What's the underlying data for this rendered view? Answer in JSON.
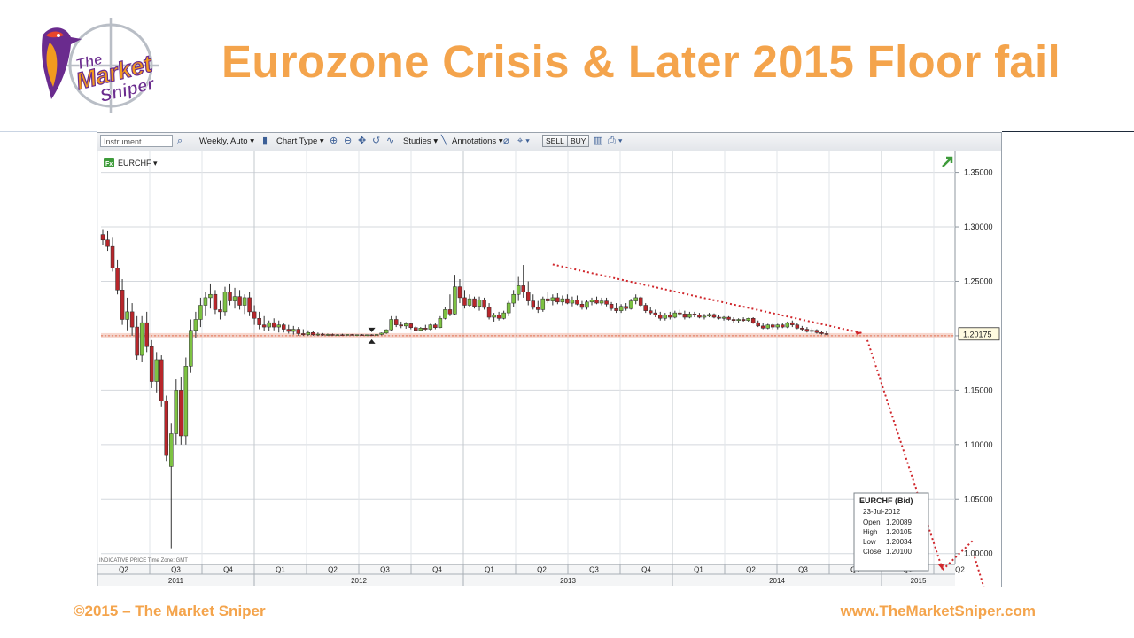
{
  "slide": {
    "title": "Eurozone Crisis & Later 2015 Floor fail",
    "footer_left": "©2015 – The Market Sniper",
    "footer_right": "www.TheMarketSniper.com",
    "logo_text_line1": "The",
    "logo_text_line2": "Market",
    "logo_text_line3": "Sniper",
    "accent_color": "#f4a44c"
  },
  "toolbar": {
    "instrument_placeholder": "Instrument",
    "interval": "Weekly, Auto",
    "chart_type": "Chart Type",
    "studies": "Studies",
    "annotations": "Annotations",
    "sell": "SELL",
    "buy": "BUY"
  },
  "chart_data": {
    "type": "candlestick",
    "symbol": "EURCHF",
    "symbol_badge": "Fx",
    "frequency": "weekly",
    "ylim": [
      0.99,
      1.37
    ],
    "y_ticks": [
      "1.35000",
      "1.30000",
      "1.25000",
      "1.20000",
      "1.15000",
      "1.10000",
      "1.05000",
      "1.00000"
    ],
    "y_tick_values": [
      1.35,
      1.3,
      1.25,
      1.2,
      1.15,
      1.1,
      1.05,
      1.0
    ],
    "last_price_label": "1.20175",
    "last_price": 1.20175,
    "floor_level": 1.2,
    "quarters": [
      "Q2",
      "Q3",
      "Q4",
      "Q1",
      "Q2",
      "Q3",
      "Q4",
      "Q1",
      "Q2",
      "Q3",
      "Q4",
      "Q1",
      "Q2",
      "Q3",
      "Q4",
      "Q1",
      "Q2"
    ],
    "years": [
      "2011",
      "2012",
      "2013",
      "2014",
      "2015"
    ],
    "bottom_note": "INDICATIVE PRICE   Time Zone: GMT",
    "tooltip": {
      "title": "EURCHF (Bid)",
      "date": "23-Jul-2012",
      "rows": [
        {
          "label": "Open",
          "value": "1.20089"
        },
        {
          "label": "High",
          "value": "1.20105"
        },
        {
          "label": "Low",
          "value": "1.20034"
        },
        {
          "label": "Close",
          "value": "1.20100"
        }
      ]
    },
    "colors": {
      "up": "#7dc242",
      "down": "#b8262b",
      "wick": "#333333",
      "grid": "#d4d8dd",
      "annotation": "#d0272c",
      "floor_band": "#f2b7a6"
    },
    "candles": [
      {
        "o": 1.293,
        "h": 1.298,
        "l": 1.283,
        "c": 1.288
      },
      {
        "o": 1.288,
        "h": 1.296,
        "l": 1.278,
        "c": 1.282
      },
      {
        "o": 1.282,
        "h": 1.29,
        "l": 1.259,
        "c": 1.262
      },
      {
        "o": 1.262,
        "h": 1.27,
        "l": 1.238,
        "c": 1.242
      },
      {
        "o": 1.242,
        "h": 1.252,
        "l": 1.21,
        "c": 1.215
      },
      {
        "o": 1.215,
        "h": 1.235,
        "l": 1.205,
        "c": 1.222
      },
      {
        "o": 1.222,
        "h": 1.23,
        "l": 1.2,
        "c": 1.208
      },
      {
        "o": 1.208,
        "h": 1.218,
        "l": 1.178,
        "c": 1.182
      },
      {
        "o": 1.182,
        "h": 1.218,
        "l": 1.176,
        "c": 1.212
      },
      {
        "o": 1.212,
        "h": 1.222,
        "l": 1.185,
        "c": 1.19
      },
      {
        "o": 1.19,
        "h": 1.196,
        "l": 1.152,
        "c": 1.158
      },
      {
        "o": 1.158,
        "h": 1.185,
        "l": 1.148,
        "c": 1.178
      },
      {
        "o": 1.178,
        "h": 1.182,
        "l": 1.135,
        "c": 1.14
      },
      {
        "o": 1.14,
        "h": 1.145,
        "l": 1.085,
        "c": 1.09
      },
      {
        "o": 1.08,
        "h": 1.12,
        "l": 1.005,
        "c": 1.11
      },
      {
        "o": 1.11,
        "h": 1.16,
        "l": 1.1,
        "c": 1.15
      },
      {
        "o": 1.15,
        "h": 1.162,
        "l": 1.1,
        "c": 1.108
      },
      {
        "o": 1.108,
        "h": 1.18,
        "l": 1.1,
        "c": 1.172
      },
      {
        "o": 1.172,
        "h": 1.215,
        "l": 1.166,
        "c": 1.205
      },
      {
        "o": 1.205,
        "h": 1.222,
        "l": 1.198,
        "c": 1.215
      },
      {
        "o": 1.215,
        "h": 1.235,
        "l": 1.208,
        "c": 1.228
      },
      {
        "o": 1.228,
        "h": 1.24,
        "l": 1.218,
        "c": 1.235
      },
      {
        "o": 1.235,
        "h": 1.248,
        "l": 1.225,
        "c": 1.238
      },
      {
        "o": 1.238,
        "h": 1.242,
        "l": 1.22,
        "c": 1.224
      },
      {
        "o": 1.224,
        "h": 1.232,
        "l": 1.215,
        "c": 1.222
      },
      {
        "o": 1.222,
        "h": 1.245,
        "l": 1.218,
        "c": 1.24
      },
      {
        "o": 1.24,
        "h": 1.248,
        "l": 1.228,
        "c": 1.232
      },
      {
        "o": 1.232,
        "h": 1.244,
        "l": 1.225,
        "c": 1.236
      },
      {
        "o": 1.236,
        "h": 1.242,
        "l": 1.224,
        "c": 1.228
      },
      {
        "o": 1.228,
        "h": 1.238,
        "l": 1.22,
        "c": 1.235
      },
      {
        "o": 1.235,
        "h": 1.24,
        "l": 1.218,
        "c": 1.222
      },
      {
        "o": 1.222,
        "h": 1.228,
        "l": 1.21,
        "c": 1.216
      },
      {
        "o": 1.216,
        "h": 1.222,
        "l": 1.206,
        "c": 1.21
      },
      {
        "o": 1.21,
        "h": 1.218,
        "l": 1.204,
        "c": 1.208
      },
      {
        "o": 1.208,
        "h": 1.214,
        "l": 1.204,
        "c": 1.212
      },
      {
        "o": 1.212,
        "h": 1.216,
        "l": 1.205,
        "c": 1.208
      },
      {
        "o": 1.208,
        "h": 1.214,
        "l": 1.203,
        "c": 1.21
      },
      {
        "o": 1.21,
        "h": 1.212,
        "l": 1.203,
        "c": 1.206
      },
      {
        "o": 1.206,
        "h": 1.21,
        "l": 1.202,
        "c": 1.204
      },
      {
        "o": 1.204,
        "h": 1.209,
        "l": 1.201,
        "c": 1.206
      },
      {
        "o": 1.206,
        "h": 1.208,
        "l": 1.2,
        "c": 1.202
      },
      {
        "o": 1.202,
        "h": 1.206,
        "l": 1.2,
        "c": 1.201
      },
      {
        "o": 1.201,
        "h": 1.205,
        "l": 1.2,
        "c": 1.203
      },
      {
        "o": 1.203,
        "h": 1.204,
        "l": 1.2,
        "c": 1.201
      },
      {
        "o": 1.201,
        "h": 1.203,
        "l": 1.2,
        "c": 1.2015
      },
      {
        "o": 1.2015,
        "h": 1.2025,
        "l": 1.2,
        "c": 1.2008
      },
      {
        "o": 1.2008,
        "h": 1.202,
        "l": 1.2,
        "c": 1.2012
      },
      {
        "o": 1.2012,
        "h": 1.202,
        "l": 1.2002,
        "c": 1.2006
      },
      {
        "o": 1.2006,
        "h": 1.2015,
        "l": 1.2001,
        "c": 1.201
      },
      {
        "o": 1.201,
        "h": 1.2018,
        "l": 1.2003,
        "c": 1.2008
      },
      {
        "o": 1.2008,
        "h": 1.2015,
        "l": 1.2002,
        "c": 1.2012
      },
      {
        "o": 1.2012,
        "h": 1.2016,
        "l": 1.2003,
        "c": 1.2005
      },
      {
        "o": 1.2009,
        "h": 1.201,
        "l": 1.2003,
        "c": 1.201
      },
      {
        "o": 1.201,
        "h": 1.2015,
        "l": 1.2002,
        "c": 1.2006
      },
      {
        "o": 1.2006,
        "h": 1.2012,
        "l": 1.2001,
        "c": 1.2009
      },
      {
        "o": 1.2009,
        "h": 1.2014,
        "l": 1.2003,
        "c": 1.2007
      },
      {
        "o": 1.2007,
        "h": 1.2015,
        "l": 1.2004,
        "c": 1.2012
      },
      {
        "o": 1.2012,
        "h": 1.203,
        "l": 1.2005,
        "c": 1.2025
      },
      {
        "o": 1.2025,
        "h": 1.206,
        "l": 1.2018,
        "c": 1.2055
      },
      {
        "o": 1.2055,
        "h": 1.218,
        "l": 1.2045,
        "c": 1.215
      },
      {
        "o": 1.215,
        "h": 1.218,
        "l": 1.208,
        "c": 1.21
      },
      {
        "o": 1.21,
        "h": 1.213,
        "l": 1.207,
        "c": 1.209
      },
      {
        "o": 1.209,
        "h": 1.2125,
        "l": 1.2065,
        "c": 1.211
      },
      {
        "o": 1.211,
        "h": 1.212,
        "l": 1.206,
        "c": 1.2075
      },
      {
        "o": 1.2075,
        "h": 1.209,
        "l": 1.204,
        "c": 1.205
      },
      {
        "o": 1.205,
        "h": 1.208,
        "l": 1.204,
        "c": 1.207
      },
      {
        "o": 1.207,
        "h": 1.21,
        "l": 1.205,
        "c": 1.206
      },
      {
        "o": 1.206,
        "h": 1.211,
        "l": 1.205,
        "c": 1.21
      },
      {
        "o": 1.21,
        "h": 1.212,
        "l": 1.206,
        "c": 1.2075
      },
      {
        "o": 1.2075,
        "h": 1.218,
        "l": 1.207,
        "c": 1.216
      },
      {
        "o": 1.216,
        "h": 1.226,
        "l": 1.215,
        "c": 1.224
      },
      {
        "o": 1.224,
        "h": 1.238,
        "l": 1.218,
        "c": 1.22
      },
      {
        "o": 1.22,
        "h": 1.256,
        "l": 1.219,
        "c": 1.245
      },
      {
        "o": 1.245,
        "h": 1.252,
        "l": 1.23,
        "c": 1.235
      },
      {
        "o": 1.235,
        "h": 1.242,
        "l": 1.225,
        "c": 1.228
      },
      {
        "o": 1.228,
        "h": 1.238,
        "l": 1.226,
        "c": 1.234
      },
      {
        "o": 1.234,
        "h": 1.236,
        "l": 1.225,
        "c": 1.227
      },
      {
        "o": 1.227,
        "h": 1.236,
        "l": 1.223,
        "c": 1.233
      },
      {
        "o": 1.233,
        "h": 1.235,
        "l": 1.224,
        "c": 1.226
      },
      {
        "o": 1.226,
        "h": 1.23,
        "l": 1.215,
        "c": 1.217
      },
      {
        "o": 1.217,
        "h": 1.221,
        "l": 1.213,
        "c": 1.219
      },
      {
        "o": 1.219,
        "h": 1.222,
        "l": 1.214,
        "c": 1.216
      },
      {
        "o": 1.216,
        "h": 1.223,
        "l": 1.215,
        "c": 1.221
      },
      {
        "o": 1.221,
        "h": 1.232,
        "l": 1.218,
        "c": 1.23
      },
      {
        "o": 1.23,
        "h": 1.242,
        "l": 1.226,
        "c": 1.238
      },
      {
        "o": 1.238,
        "h": 1.254,
        "l": 1.232,
        "c": 1.246
      },
      {
        "o": 1.246,
        "h": 1.265,
        "l": 1.235,
        "c": 1.24
      },
      {
        "o": 1.24,
        "h": 1.25,
        "l": 1.228,
        "c": 1.232
      },
      {
        "o": 1.232,
        "h": 1.238,
        "l": 1.224,
        "c": 1.226
      },
      {
        "o": 1.226,
        "h": 1.232,
        "l": 1.221,
        "c": 1.224
      },
      {
        "o": 1.224,
        "h": 1.236,
        "l": 1.222,
        "c": 1.234
      },
      {
        "o": 1.234,
        "h": 1.24,
        "l": 1.23,
        "c": 1.232
      },
      {
        "o": 1.232,
        "h": 1.238,
        "l": 1.228,
        "c": 1.235
      },
      {
        "o": 1.235,
        "h": 1.239,
        "l": 1.229,
        "c": 1.231
      },
      {
        "o": 1.231,
        "h": 1.237,
        "l": 1.228,
        "c": 1.234
      },
      {
        "o": 1.234,
        "h": 1.238,
        "l": 1.229,
        "c": 1.23
      },
      {
        "o": 1.23,
        "h": 1.236,
        "l": 1.227,
        "c": 1.233
      },
      {
        "o": 1.233,
        "h": 1.237,
        "l": 1.228,
        "c": 1.229
      },
      {
        "o": 1.229,
        "h": 1.232,
        "l": 1.224,
        "c": 1.226
      },
      {
        "o": 1.226,
        "h": 1.233,
        "l": 1.224,
        "c": 1.231
      },
      {
        "o": 1.231,
        "h": 1.235,
        "l": 1.228,
        "c": 1.233
      },
      {
        "o": 1.233,
        "h": 1.236,
        "l": 1.229,
        "c": 1.23
      },
      {
        "o": 1.23,
        "h": 1.235,
        "l": 1.228,
        "c": 1.232
      },
      {
        "o": 1.232,
        "h": 1.235,
        "l": 1.227,
        "c": 1.229
      },
      {
        "o": 1.229,
        "h": 1.231,
        "l": 1.223,
        "c": 1.225
      },
      {
        "o": 1.225,
        "h": 1.23,
        "l": 1.221,
        "c": 1.223
      },
      {
        "o": 1.223,
        "h": 1.229,
        "l": 1.221,
        "c": 1.227
      },
      {
        "o": 1.227,
        "h": 1.23,
        "l": 1.223,
        "c": 1.225
      },
      {
        "o": 1.225,
        "h": 1.234,
        "l": 1.224,
        "c": 1.232
      },
      {
        "o": 1.232,
        "h": 1.238,
        "l": 1.229,
        "c": 1.235
      },
      {
        "o": 1.235,
        "h": 1.236,
        "l": 1.226,
        "c": 1.228
      },
      {
        "o": 1.228,
        "h": 1.23,
        "l": 1.221,
        "c": 1.223
      },
      {
        "o": 1.223,
        "h": 1.226,
        "l": 1.219,
        "c": 1.221
      },
      {
        "o": 1.221,
        "h": 1.224,
        "l": 1.217,
        "c": 1.219
      },
      {
        "o": 1.219,
        "h": 1.222,
        "l": 1.214,
        "c": 1.216
      },
      {
        "o": 1.216,
        "h": 1.221,
        "l": 1.214,
        "c": 1.219
      },
      {
        "o": 1.219,
        "h": 1.222,
        "l": 1.215,
        "c": 1.217
      },
      {
        "o": 1.217,
        "h": 1.223,
        "l": 1.216,
        "c": 1.221
      },
      {
        "o": 1.221,
        "h": 1.224,
        "l": 1.218,
        "c": 1.22
      },
      {
        "o": 1.22,
        "h": 1.223,
        "l": 1.215,
        "c": 1.217
      },
      {
        "o": 1.217,
        "h": 1.222,
        "l": 1.216,
        "c": 1.22
      },
      {
        "o": 1.22,
        "h": 1.222,
        "l": 1.217,
        "c": 1.219
      },
      {
        "o": 1.219,
        "h": 1.221,
        "l": 1.216,
        "c": 1.217
      },
      {
        "o": 1.217,
        "h": 1.22,
        "l": 1.215,
        "c": 1.218
      },
      {
        "o": 1.218,
        "h": 1.221,
        "l": 1.217,
        "c": 1.2195
      },
      {
        "o": 1.2195,
        "h": 1.2205,
        "l": 1.216,
        "c": 1.217
      },
      {
        "o": 1.217,
        "h": 1.219,
        "l": 1.215,
        "c": 1.216
      },
      {
        "o": 1.216,
        "h": 1.218,
        "l": 1.214,
        "c": 1.217
      },
      {
        "o": 1.217,
        "h": 1.218,
        "l": 1.214,
        "c": 1.215
      },
      {
        "o": 1.215,
        "h": 1.217,
        "l": 1.212,
        "c": 1.214
      },
      {
        "o": 1.214,
        "h": 1.216,
        "l": 1.212,
        "c": 1.215
      },
      {
        "o": 1.215,
        "h": 1.217,
        "l": 1.213,
        "c": 1.214
      },
      {
        "o": 1.214,
        "h": 1.2165,
        "l": 1.213,
        "c": 1.216
      },
      {
        "o": 1.216,
        "h": 1.217,
        "l": 1.211,
        "c": 1.212
      },
      {
        "o": 1.212,
        "h": 1.214,
        "l": 1.208,
        "c": 1.209
      },
      {
        "o": 1.209,
        "h": 1.212,
        "l": 1.206,
        "c": 1.207
      },
      {
        "o": 1.207,
        "h": 1.211,
        "l": 1.206,
        "c": 1.21
      },
      {
        "o": 1.21,
        "h": 1.211,
        "l": 1.206,
        "c": 1.208
      },
      {
        "o": 1.208,
        "h": 1.211,
        "l": 1.206,
        "c": 1.21
      },
      {
        "o": 1.21,
        "h": 1.212,
        "l": 1.207,
        "c": 1.208
      },
      {
        "o": 1.208,
        "h": 1.213,
        "l": 1.207,
        "c": 1.212
      },
      {
        "o": 1.212,
        "h": 1.214,
        "l": 1.208,
        "c": 1.21
      },
      {
        "o": 1.21,
        "h": 1.212,
        "l": 1.206,
        "c": 1.207
      },
      {
        "o": 1.207,
        "h": 1.209,
        "l": 1.204,
        "c": 1.206
      },
      {
        "o": 1.206,
        "h": 1.208,
        "l": 1.203,
        "c": 1.204
      },
      {
        "o": 1.204,
        "h": 1.207,
        "l": 1.202,
        "c": 1.205
      },
      {
        "o": 1.205,
        "h": 1.206,
        "l": 1.202,
        "c": 1.203
      },
      {
        "o": 1.203,
        "h": 1.2045,
        "l": 1.201,
        "c": 1.202
      },
      {
        "o": 1.202,
        "h": 1.204,
        "l": 1.2005,
        "c": 1.2018
      }
    ]
  }
}
